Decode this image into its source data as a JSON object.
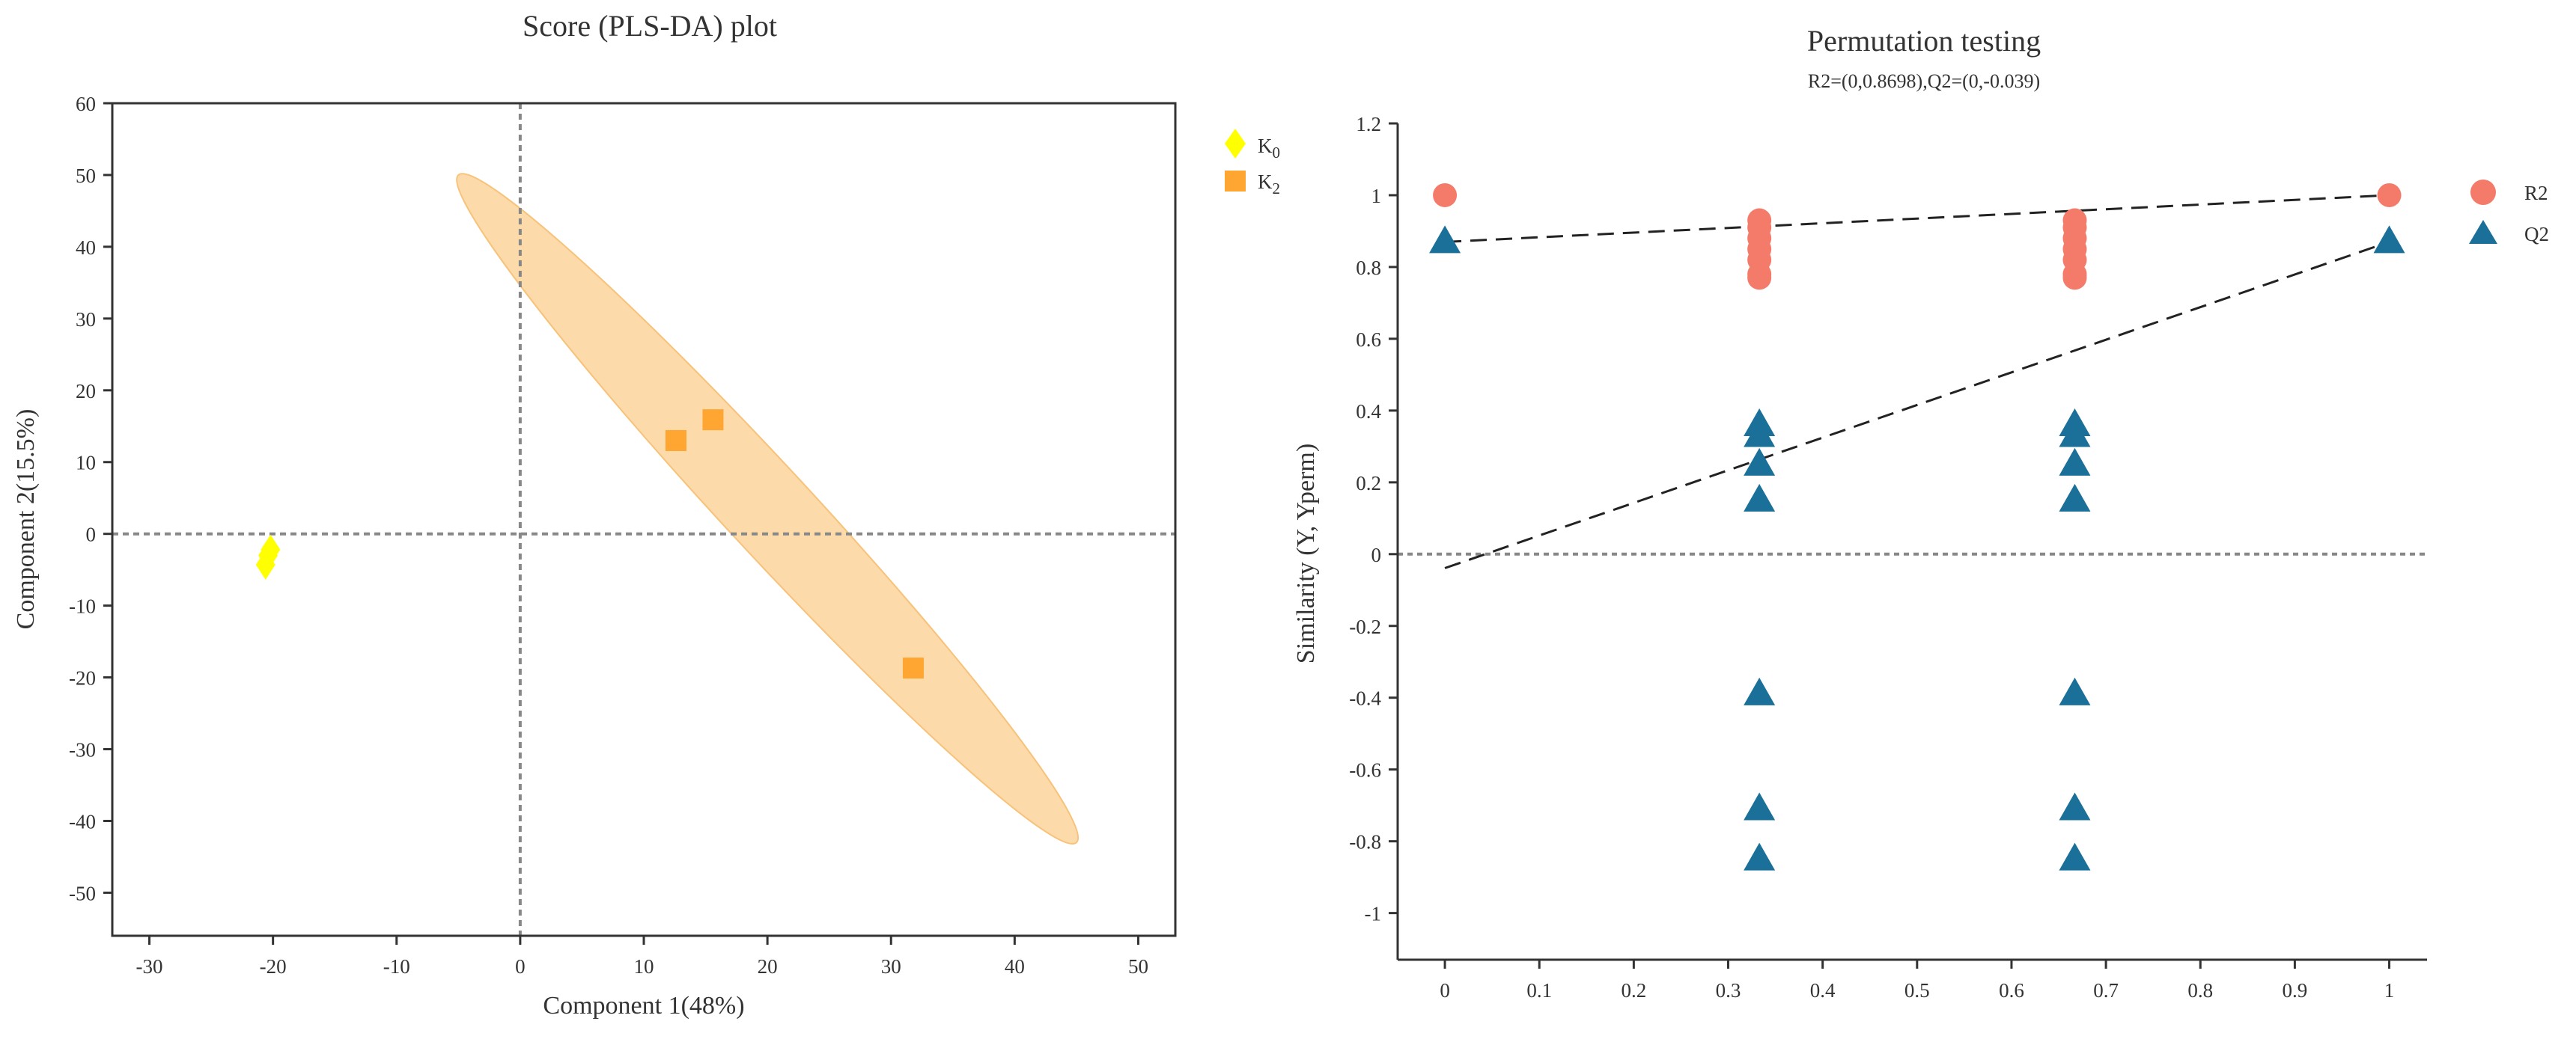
{
  "chart_data": [
    {
      "type": "scatter",
      "title": "Score (PLS-DA) plot",
      "xlabel": "Component 1(48%)",
      "ylabel": "Component 2(15.5%)",
      "xlim": [
        -33,
        53
      ],
      "ylim": [
        -56,
        60
      ],
      "xticks": [
        -30,
        -20,
        -10,
        0,
        10,
        20,
        30,
        40,
        50
      ],
      "yticks": [
        60,
        50,
        40,
        30,
        20,
        10,
        0,
        -10,
        -20,
        -30,
        -40,
        -50
      ],
      "reference_lines": {
        "x": 0,
        "y": 0,
        "style": "dotted"
      },
      "legend": [
        {
          "label_main": "K",
          "label_sub": "0",
          "color": "#ffff00",
          "marker": "diamond"
        },
        {
          "label_main": "K",
          "label_sub": "2",
          "color": "#ffa531",
          "marker": "square"
        }
      ],
      "series": [
        {
          "name": "K0",
          "color": "#ffff00",
          "marker": "diamond",
          "points": [
            [
              -20.2,
              -2.2
            ],
            [
              -20.4,
              -3.0
            ],
            [
              -20.6,
              -4.3
            ]
          ]
        },
        {
          "name": "K2",
          "color": "#ffa531",
          "marker": "square",
          "points": [
            [
              12.6,
              13.0
            ],
            [
              15.6,
              15.9
            ],
            [
              31.8,
              -18.7
            ]
          ]
        }
      ],
      "ellipse": {
        "group": "K2",
        "color": "#fcd39a",
        "from": [
          -5,
          50
        ],
        "to": [
          45,
          -43
        ]
      }
    },
    {
      "type": "scatter",
      "title": "Permutation testing",
      "subtitle": "R2=(0,0.8698),Q2=(0,-0.039)",
      "xlabel": "",
      "ylabel": "Similarity (Y, Yperm)",
      "xlim": [
        -0.05,
        1.04
      ],
      "ylim": [
        -1.13,
        1.2
      ],
      "xticks": [
        "0",
        "0.1",
        "0.2",
        "0.3",
        "0.4",
        "0.5",
        "0.6",
        "0.7",
        "0.8",
        "0.9",
        "1"
      ],
      "yticks": [
        "1.2",
        "1",
        "0.8",
        "0.6",
        "0.4",
        "0.2",
        "0",
        "-0.2",
        "-0.4",
        "-0.6",
        "-0.8",
        "-1"
      ],
      "reference_lines": {
        "y": 0,
        "style": "dotted"
      },
      "legend": [
        {
          "label": "R2",
          "color": "#f47b6a",
          "marker": "circle"
        },
        {
          "label": "Q2",
          "color": "#1a7099",
          "marker": "triangle"
        }
      ],
      "series": [
        {
          "name": "R2",
          "color": "#f47b6a",
          "marker": "circle",
          "x": [
            0,
            0.333,
            0.333,
            0.333,
            0.333,
            0.333,
            0.333,
            0.333,
            0.667,
            0.667,
            0.667,
            0.667,
            0.667,
            0.667,
            0.667,
            1
          ],
          "y": [
            1.0,
            0.93,
            0.91,
            0.88,
            0.85,
            0.82,
            0.78,
            0.77,
            0.93,
            0.91,
            0.88,
            0.85,
            0.82,
            0.78,
            0.77,
            1.0
          ]
        },
        {
          "name": "Q2",
          "color": "#1a7099",
          "marker": "triangle",
          "x": [
            0,
            0.333,
            0.333,
            0.333,
            0.333,
            0.333,
            0.333,
            0.333,
            0.667,
            0.667,
            0.667,
            0.667,
            0.667,
            0.667,
            0.667,
            1
          ],
          "y": [
            0.87,
            0.36,
            0.33,
            0.25,
            0.15,
            -0.39,
            -0.71,
            -0.85,
            0.36,
            0.33,
            0.25,
            0.15,
            -0.39,
            -0.71,
            -0.85,
            0.87
          ]
        }
      ],
      "regression_lines": [
        {
          "name": "R2",
          "from": [
            0,
            0.8698
          ],
          "to": [
            1,
            1.0
          ]
        },
        {
          "name": "Q2",
          "from": [
            0,
            -0.039
          ],
          "to": [
            1,
            0.87
          ]
        }
      ]
    }
  ]
}
